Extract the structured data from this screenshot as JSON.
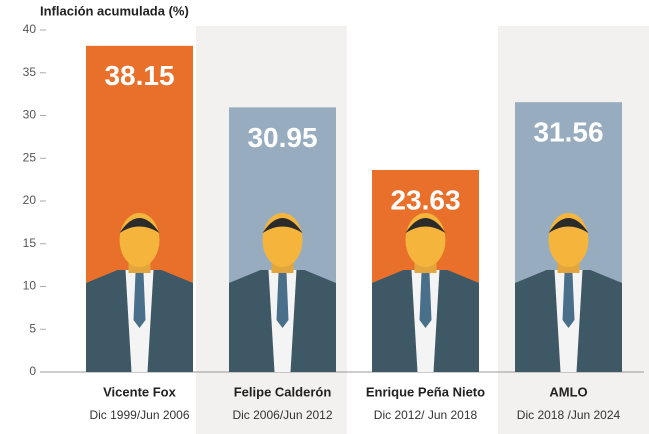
{
  "chart_data": {
    "type": "bar",
    "title": "Inflación acumulada (%)",
    "categories": [
      "Vicente Fox",
      "Felipe Calderón",
      "Enrique Peña Nieto",
      "AMLO"
    ],
    "periods": [
      "Dic 1999/Jun 2006",
      "Dic 2006/Jun 2012",
      "Dic 2012/ Jun 2018",
      "Dic 2018 /Jun 2024"
    ],
    "values": [
      38.15,
      30.95,
      23.63,
      31.56
    ],
    "colors": [
      "#e8702a",
      "#97adbf",
      "#e8702a",
      "#97adbf"
    ],
    "ylim": [
      0,
      40
    ],
    "yticks": [
      0,
      5,
      10,
      15,
      20,
      25,
      30,
      35,
      40
    ],
    "grid": false
  }
}
